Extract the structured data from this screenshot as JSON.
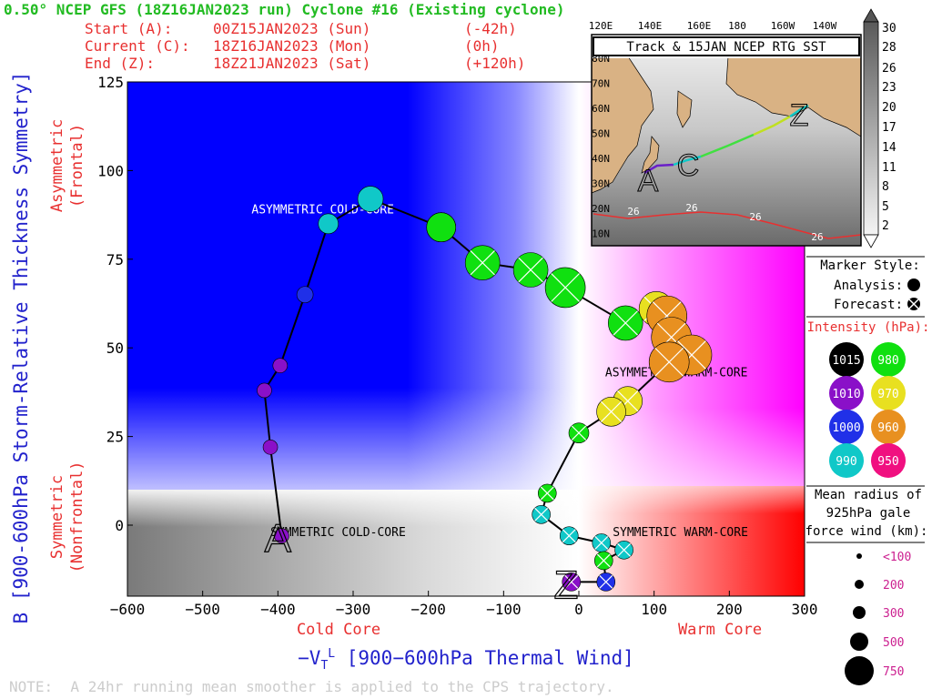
{
  "header": {
    "title": "0.50° NCEP GFS (18Z16JAN2023 run) Cyclone #16 (Existing cyclone)",
    "start_label": "Start (A):",
    "start_time": "00Z15JAN2023 (Sun)",
    "start_offset": "(-42h)",
    "current_label": "Current (C):",
    "current_time": "18Z16JAN2023 (Mon)",
    "current_offset": "(0h)",
    "end_label": "End (Z):",
    "end_time": "18Z21JAN2023 (Sat)",
    "end_offset": "(+120h)"
  },
  "footer_note": "NOTE:  A 24hr running mean smoother is applied to the CPS trajectory.",
  "colors": {
    "title_green": "#22bb22",
    "red_text": "#e83030",
    "axis_blue": "#2222cc",
    "cold_blue": "#0000ff",
    "warm_magenta": "#ff00ff",
    "warm_red": "#ff0000",
    "cold_gray": "#808080",
    "intensity_1015": "#000000",
    "intensity_1010": "#8a10c8",
    "intensity_1000": "#2030e8",
    "intensity_990": "#10c8c8",
    "intensity_980": "#10e010",
    "intensity_970": "#e8e020",
    "intensity_960": "#e89020",
    "intensity_950": "#f01080"
  },
  "chart_data": {
    "type": "scatter",
    "xlabel": "-V_T^L [900-600hPa Thermal Wind]",
    "ylabel": "B [900-600hPa Storm-Relative Thickness Symmetry]",
    "xlim": [
      -600,
      300
    ],
    "ylim": [
      -15,
      125
    ],
    "x_ticks": [
      -600,
      -500,
      -400,
      -300,
      -200,
      -100,
      0,
      100,
      200,
      300
    ],
    "y_ticks": [
      0,
      25,
      50,
      75,
      100,
      125
    ],
    "x_tick_labels": [
      "−600",
      "−500",
      "−400",
      "−300",
      "−200",
      "−100",
      "0",
      "100",
      "200",
      "300"
    ],
    "y_tick_labels": [
      "0",
      "25",
      "50",
      "75",
      "100",
      "125"
    ],
    "grid": false,
    "x_side_labels": {
      "cold": "Cold Core",
      "warm": "Warm Core"
    },
    "y_side_labels": {
      "top": "Asymmetric\n(Frontal)",
      "bottom": "Symmetric\n(Nonfrontal)"
    },
    "quadrant_labels": [
      {
        "text": "ASYMMETRIC COLD-CORE",
        "x": -435,
        "y": 89
      },
      {
        "text": "ASYMMETRIC WARM-CORE",
        "x": 35,
        "y": 43
      },
      {
        "text": "SYMMETRIC COLD-CORE",
        "x": -410,
        "y": -2
      },
      {
        "text": "SYMMETRIC WARM-CORE",
        "x": 45,
        "y": -2
      }
    ],
    "symmetry_threshold": 10,
    "trajectory": [
      {
        "x": -395,
        "y": -3,
        "pressure": 1010,
        "radius_km": 100,
        "forecast": false
      },
      {
        "x": -410,
        "y": 22,
        "pressure": 1010,
        "radius_km": 100,
        "forecast": false
      },
      {
        "x": -418,
        "y": 38,
        "pressure": 1010,
        "radius_km": 100,
        "forecast": false
      },
      {
        "x": -397,
        "y": 45,
        "pressure": 1010,
        "radius_km": 100,
        "forecast": false
      },
      {
        "x": -364,
        "y": 65,
        "pressure": 1000,
        "radius_km": 150,
        "forecast": false
      },
      {
        "x": -333,
        "y": 85,
        "pressure": 990,
        "radius_km": 250,
        "forecast": false
      },
      {
        "x": -277,
        "y": 92,
        "pressure": 990,
        "radius_km": 350,
        "forecast": false
      },
      {
        "x": -183,
        "y": 84,
        "pressure": 1000,
        "radius_km": 400,
        "forecast": false
      },
      {
        "x": -183,
        "y": 84,
        "pressure": 990,
        "radius_km": 400,
        "forecast": false
      },
      {
        "x": -183,
        "y": 84,
        "pressure": 980,
        "radius_km": 400,
        "forecast": false
      },
      {
        "x": -128,
        "y": 74,
        "pressure": 980,
        "radius_km": 500,
        "forecast": true
      },
      {
        "x": -64,
        "y": 72,
        "pressure": 980,
        "radius_km": 500,
        "forecast": true
      },
      {
        "x": -18,
        "y": 67,
        "pressure": 980,
        "radius_km": 600,
        "forecast": true
      },
      {
        "x": 62,
        "y": 57,
        "pressure": 980,
        "radius_km": 500,
        "forecast": true
      },
      {
        "x": 103,
        "y": 61,
        "pressure": 970,
        "radius_km": 500,
        "forecast": true
      },
      {
        "x": 117,
        "y": 59,
        "pressure": 960,
        "radius_km": 600,
        "forecast": true
      },
      {
        "x": 123,
        "y": 53,
        "pressure": 960,
        "radius_km": 600,
        "forecast": true
      },
      {
        "x": 150,
        "y": 48,
        "pressure": 960,
        "radius_km": 600,
        "forecast": true
      },
      {
        "x": 120,
        "y": 46,
        "pressure": 960,
        "radius_km": 600,
        "forecast": true
      },
      {
        "x": 65,
        "y": 35,
        "pressure": 970,
        "radius_km": 400,
        "forecast": true
      },
      {
        "x": 43,
        "y": 32,
        "pressure": 970,
        "radius_km": 400,
        "forecast": true
      },
      {
        "x": 0,
        "y": 26,
        "pressure": 980,
        "radius_km": 250,
        "forecast": true
      },
      {
        "x": -42,
        "y": 9,
        "pressure": 980,
        "radius_km": 200,
        "forecast": true
      },
      {
        "x": -50,
        "y": 3,
        "pressure": 990,
        "radius_km": 200,
        "forecast": true
      },
      {
        "x": -13,
        "y": -3,
        "pressure": 990,
        "radius_km": 200,
        "forecast": true
      },
      {
        "x": 30,
        "y": -5,
        "pressure": 990,
        "radius_km": 200,
        "forecast": true
      },
      {
        "x": 60,
        "y": -7,
        "pressure": 990,
        "radius_km": 200,
        "forecast": true
      },
      {
        "x": 33,
        "y": -10,
        "pressure": 980,
        "radius_km": 200,
        "forecast": true
      },
      {
        "x": 36,
        "y": -16,
        "pressure": 1000,
        "radius_km": 200,
        "forecast": true
      },
      {
        "x": -10,
        "y": -16,
        "pressure": 1010,
        "radius_km": 200,
        "forecast": true
      }
    ],
    "track_markers": [
      {
        "label": "A",
        "x": -400,
        "y": -3
      },
      {
        "label": "Z",
        "x": -17,
        "y": -16
      }
    ]
  },
  "inset": {
    "title": "Track & 15JAN NCEP RTG SST",
    "lon_labels": [
      "120E",
      "140E",
      "160E",
      "180",
      "160W",
      "140W"
    ],
    "lat_labels": [
      "80N",
      "70N",
      "60N",
      "50N",
      "40N",
      "30N",
      "20N",
      "10N"
    ],
    "sst_contour_label": "26",
    "markers": [
      "A",
      "C",
      "Z"
    ]
  },
  "colorbar": {
    "labels": [
      "30",
      "28",
      "26",
      "23",
      "20",
      "17",
      "14",
      "11",
      "8",
      "5",
      "2"
    ]
  },
  "legend": {
    "marker_style_title": "Marker Style:",
    "analysis_label": "Analysis:",
    "forecast_label": "Forecast:",
    "intensity_title": "Intensity (hPa):",
    "intensities": [
      {
        "value": "1015",
        "color": "#000000"
      },
      {
        "value": "980",
        "color": "#10e010"
      },
      {
        "value": "1010",
        "color": "#8a10c8"
      },
      {
        "value": "970",
        "color": "#e8e020"
      },
      {
        "value": "1000",
        "color": "#2030e8"
      },
      {
        "value": "960",
        "color": "#e89020"
      },
      {
        "value": "990",
        "color": "#10c8c8"
      },
      {
        "value": "950",
        "color": "#f01080"
      }
    ],
    "radius_title_1": "Mean radius of",
    "radius_title_2": "925hPa gale",
    "radius_title_3": "force wind (km):",
    "radii": [
      {
        "label": "<100",
        "km": 100
      },
      {
        "label": "200",
        "km": 200
      },
      {
        "label": "300",
        "km": 300
      },
      {
        "label": "500",
        "km": 500
      },
      {
        "label": "750",
        "km": 750
      }
    ]
  }
}
